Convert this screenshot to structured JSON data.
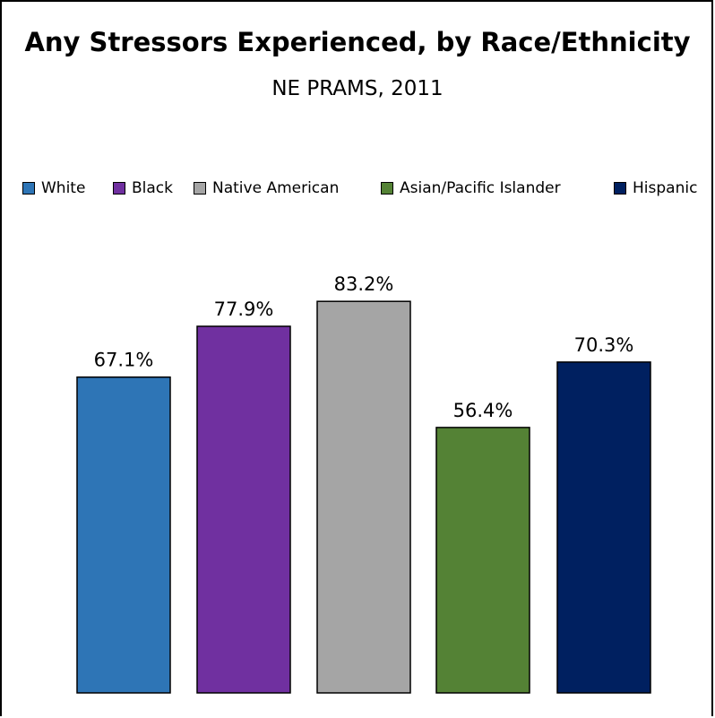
{
  "chart_data": {
    "type": "bar",
    "title": "Any Stressors Experienced, by Race/Ethnicity",
    "subtitle": "NE PRAMS, 2011",
    "categories": [
      "White",
      "Black",
      "Native American",
      "Asian/Pacific Islander",
      "Hispanic"
    ],
    "values": [
      67.1,
      77.9,
      83.2,
      56.4,
      70.3
    ],
    "data_labels": [
      "67.1%",
      "77.9%",
      "83.2%",
      "56.4%",
      "70.3%"
    ],
    "colors": [
      "#2e75b6",
      "#7030a0",
      "#a5a5a5",
      "#548235",
      "#002060"
    ],
    "xlabel": "",
    "ylabel": "",
    "ylim": [
      0,
      100
    ],
    "grid": false,
    "legend_position": "top"
  }
}
